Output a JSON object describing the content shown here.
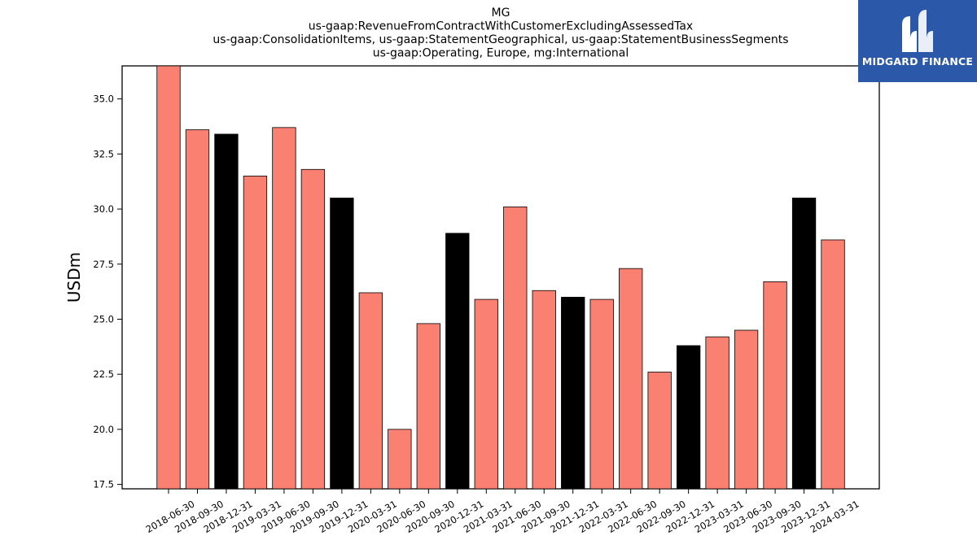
{
  "chart_data": {
    "type": "bar",
    "title_lines": [
      "MG",
      "us-gaap:RevenueFromContractWithCustomerExcludingAssessedTax",
      "us-gaap:ConsolidationItems, us-gaap:StatementGeographical, us-gaap:StatementBusinessSegments",
      "us-gaap:Operating, Europe, mg:International"
    ],
    "ylabel": "USDm",
    "xlabel": "",
    "ylim": [
      17.3,
      36.5
    ],
    "yticks": [
      17.5,
      20.0,
      22.5,
      25.0,
      27.5,
      30.0,
      32.5,
      35.0
    ],
    "categories": [
      "2018-06-30",
      "2018-09-30",
      "2018-12-31",
      "2019-03-31",
      "2019-06-30",
      "2019-09-30",
      "2019-12-31",
      "2020-03-31",
      "2020-06-30",
      "2020-09-30",
      "2020-12-31",
      "2021-03-31",
      "2021-06-30",
      "2021-09-30",
      "2021-12-31",
      "2022-03-31",
      "2022-06-30",
      "2022-09-30",
      "2022-12-31",
      "2023-03-31",
      "2023-06-30",
      "2023-09-30",
      "2023-12-31",
      "2024-03-31"
    ],
    "values": [
      36.5,
      33.6,
      33.4,
      31.5,
      33.7,
      31.8,
      30.5,
      26.2,
      20.0,
      24.8,
      28.9,
      25.9,
      30.1,
      26.3,
      26.0,
      25.9,
      27.3,
      22.6,
      23.8,
      24.2,
      24.5,
      26.7,
      30.5,
      28.6
    ],
    "bar_colors": [
      "#fa8072",
      "#fa8072",
      "#000000",
      "#fa8072",
      "#fa8072",
      "#fa8072",
      "#000000",
      "#fa8072",
      "#fa8072",
      "#fa8072",
      "#000000",
      "#fa8072",
      "#fa8072",
      "#fa8072",
      "#000000",
      "#fa8072",
      "#fa8072",
      "#fa8072",
      "#000000",
      "#fa8072",
      "#fa8072",
      "#fa8072",
      "#000000",
      "#fa8072"
    ],
    "grid": false,
    "legend": "none"
  },
  "logo": {
    "text": "MIDGARD FINANCE",
    "background": "#2b58a8"
  }
}
